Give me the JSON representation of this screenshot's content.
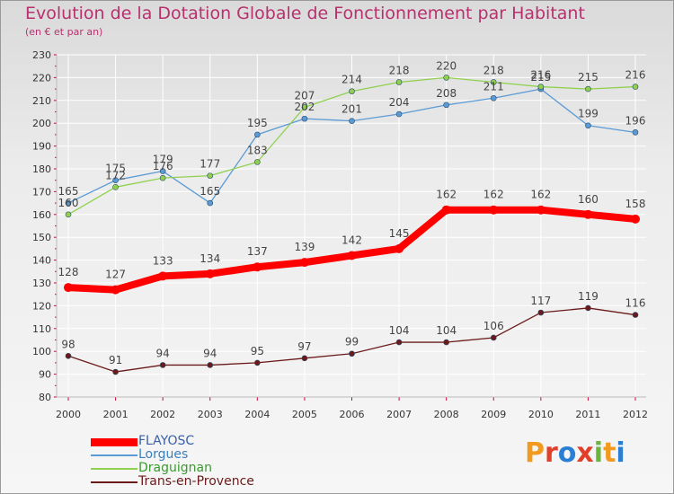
{
  "title": "Evolution de la Dotation Globale de Fonctionnement par Habitant",
  "subtitle": "(en € et par an)",
  "chart_data": {
    "type": "line",
    "title": "Evolution de la Dotation Globale de Fonctionnement par Habitant",
    "subtitle": "(en € et par an)",
    "x": [
      2000,
      2001,
      2002,
      2003,
      2004,
      2005,
      2006,
      2007,
      2008,
      2009,
      2010,
      2011,
      2012
    ],
    "ylim": [
      80,
      230
    ],
    "yticks": [
      80,
      90,
      100,
      110,
      120,
      130,
      140,
      150,
      160,
      170,
      180,
      190,
      200,
      210,
      220,
      230
    ],
    "grid": true,
    "legend_position": "bottom-left",
    "series": [
      {
        "name": "FLAYOSC",
        "color": "#ff0000",
        "values": [
          128,
          127,
          133,
          134,
          137,
          139,
          142,
          145,
          162,
          162,
          162,
          160,
          158
        ]
      },
      {
        "name": "Lorgues",
        "color": "#5b9bd5",
        "values": [
          165,
          175,
          179,
          165,
          195,
          202,
          201,
          204,
          208,
          211,
          215,
          199,
          196
        ]
      },
      {
        "name": "Draguignan",
        "color": "#8fd14f",
        "values": [
          160,
          172,
          176,
          177,
          183,
          207,
          214,
          218,
          220,
          218,
          216,
          215,
          216
        ]
      },
      {
        "name": "Trans-en-Provence",
        "color": "#6b1a1a",
        "values": [
          98,
          91,
          94,
          94,
          95,
          97,
          99,
          104,
          104,
          106,
          117,
          119,
          116
        ]
      }
    ]
  },
  "logo": {
    "text": "Proxiti",
    "letters": [
      "P",
      "r",
      "o",
      "x",
      "i",
      "t",
      "i"
    ]
  },
  "colors": {
    "title": "#b8306e",
    "axis_tick": "#cc0033",
    "grid": "#ffffff"
  }
}
